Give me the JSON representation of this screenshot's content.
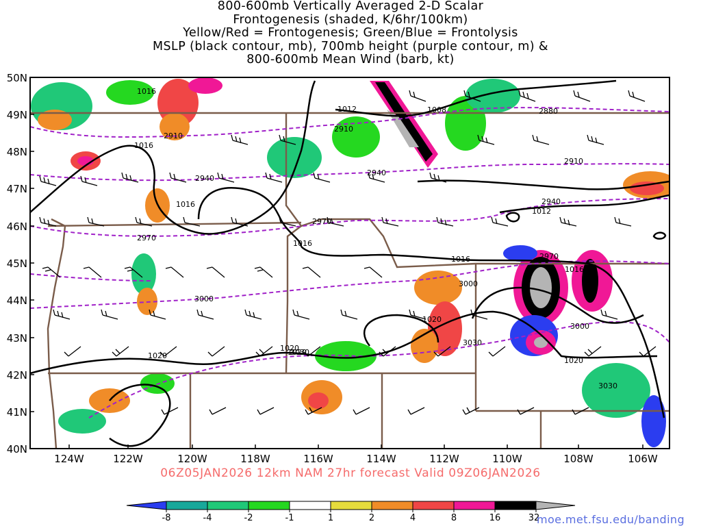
{
  "title": {
    "line1": "800-600mb Vertically Averaged 2-D Scalar",
    "line2": "Frontogenesis (shaded, K/6hr/100km)",
    "line3": "Yellow/Red = Frontogenesis;  Green/Blue = Frontolysis",
    "line4": "MSLP (black contour, mb), 700mb height (purple contour, m) &",
    "line5": "800-600mb Mean Wind (barb, kt)"
  },
  "map": {
    "lat_ticks": [
      "50N",
      "49N",
      "48N",
      "47N",
      "46N",
      "45N",
      "44N",
      "43N",
      "42N",
      "41N",
      "40N"
    ],
    "lon_ticks": [
      "124W",
      "122W",
      "120W",
      "118W",
      "116W",
      "114W",
      "112W",
      "110W",
      "108W",
      "106W"
    ],
    "extent": {
      "lon_min": -125.2,
      "lon_max": -105.0,
      "lat_min": 40.0,
      "lat_max": 50.0
    },
    "mslp_labels": [
      "1016",
      "1012",
      "1008",
      "1016",
      "1016",
      "1016",
      "1012",
      "1016",
      "1016",
      "1020",
      "1020",
      "1020",
      "1020",
      "1020"
    ],
    "height_labels": [
      "2910",
      "2910",
      "2880",
      "2940",
      "2940",
      "2910",
      "2940",
      "2970",
      "2970",
      "3000",
      "2970",
      "3000",
      "3000",
      "3030",
      "3030",
      "3030"
    ],
    "colors": {
      "mslp_contour": "#000000",
      "height_contour": "#a020c8",
      "state_borders": "#7a5c4a"
    }
  },
  "run_info": "06Z05JAN2026 12km NAM 27hr forecast Valid 09Z06JAN2026",
  "colorbar": {
    "levels": [
      "-8",
      "-4",
      "-2",
      "-1",
      "1",
      "2",
      "4",
      "8",
      "16",
      "32"
    ],
    "colors": [
      "#2b3df0",
      "#18a89a",
      "#20c878",
      "#25d820",
      "#ffffff",
      "#e6dc3c",
      "#f08c28",
      "#f04646",
      "#f01896",
      "#000000",
      "#b4b4b4"
    ]
  },
  "url": "moe.met.fsu.edu/banding"
}
